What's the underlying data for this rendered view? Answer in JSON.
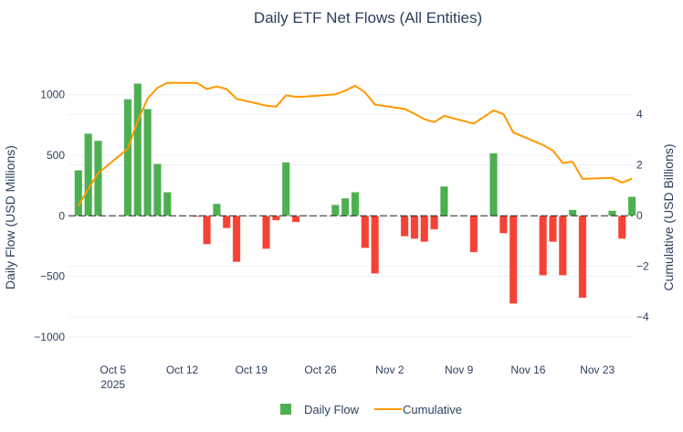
{
  "chart_data": {
    "type": "bar+line",
    "title": "Daily ETF Net Flows (All Entities)",
    "ylabel": "Daily Flow (USD Millions)",
    "y2label": "Cumulative (USD Billions)",
    "ylim": [
      -1160,
      1330
    ],
    "y2lim": [
      -5.55,
      6.35
    ],
    "xlim": [
      "2025-09-30T12:00",
      "2025-11-26T14:00"
    ],
    "yticks": [
      1000,
      500,
      0,
      -500,
      -1000
    ],
    "ytick_labels": [
      "1000",
      "500",
      "0",
      "−500",
      "−1000"
    ],
    "y2ticks": [
      4,
      2,
      0,
      -2,
      -4
    ],
    "y2tick_labels": [
      "4",
      "2",
      "0",
      "−2",
      "−4"
    ],
    "xticks": [
      "2025-10-05",
      "2025-10-12",
      "2025-10-19",
      "2025-10-26",
      "2025-11-02",
      "2025-11-09",
      "2025-11-16",
      "2025-11-23"
    ],
    "xtick_labels": [
      "Oct 5",
      "Oct 12",
      "Oct 19",
      "Oct 26",
      "Nov 2",
      "Nov 9",
      "Nov 16",
      "Nov 23"
    ],
    "xtick_year": "2025",
    "grid": true,
    "legend_position": "bottom",
    "x": [
      "2025-10-01",
      "2025-10-02",
      "2025-10-03",
      "2025-10-06",
      "2025-10-07",
      "2025-10-08",
      "2025-10-09",
      "2025-10-10",
      "2025-10-13",
      "2025-10-14",
      "2025-10-15",
      "2025-10-16",
      "2025-10-17",
      "2025-10-20",
      "2025-10-21",
      "2025-10-22",
      "2025-10-23",
      "2025-10-24",
      "2025-10-27",
      "2025-10-28",
      "2025-10-29",
      "2025-10-30",
      "2025-10-31",
      "2025-11-03",
      "2025-11-04",
      "2025-11-05",
      "2025-11-06",
      "2025-11-07",
      "2025-11-10",
      "2025-11-12",
      "2025-11-13",
      "2025-11-14",
      "2025-11-17",
      "2025-11-18",
      "2025-11-19",
      "2025-11-20",
      "2025-11-21",
      "2025-11-24",
      "2025-11-25",
      "2025-11-26"
    ],
    "series": [
      {
        "name": "Daily Flow",
        "type": "bar",
        "positive_color": "#4caf50",
        "negative_color": "#f44336",
        "values": [
          377,
          680,
          621,
          964,
          1094,
          883,
          430,
          196,
          -10,
          -236,
          100,
          -103,
          -382,
          -274,
          -38,
          443,
          -53,
          5,
          91,
          146,
          196,
          -267,
          -478,
          -171,
          -191,
          -216,
          -113,
          244,
          -302,
          518,
          -146,
          -727,
          -493,
          -216,
          -493,
          50,
          -679,
          43,
          -191,
          158
        ]
      },
      {
        "name": "Cumulative",
        "type": "line",
        "color": "#ff9800",
        "values": [
          0.377,
          1.057,
          1.678,
          2.642,
          3.736,
          4.619,
          5.049,
          5.245,
          5.235,
          4.999,
          5.099,
          4.996,
          4.614,
          4.34,
          4.302,
          4.745,
          4.692,
          4.697,
          4.788,
          4.934,
          5.13,
          4.863,
          4.385,
          4.214,
          4.023,
          3.807,
          3.694,
          3.938,
          3.636,
          4.154,
          4.008,
          3.281,
          2.788,
          2.572,
          2.079,
          2.129,
          1.45,
          1.493,
          1.302,
          1.46
        ]
      }
    ]
  }
}
